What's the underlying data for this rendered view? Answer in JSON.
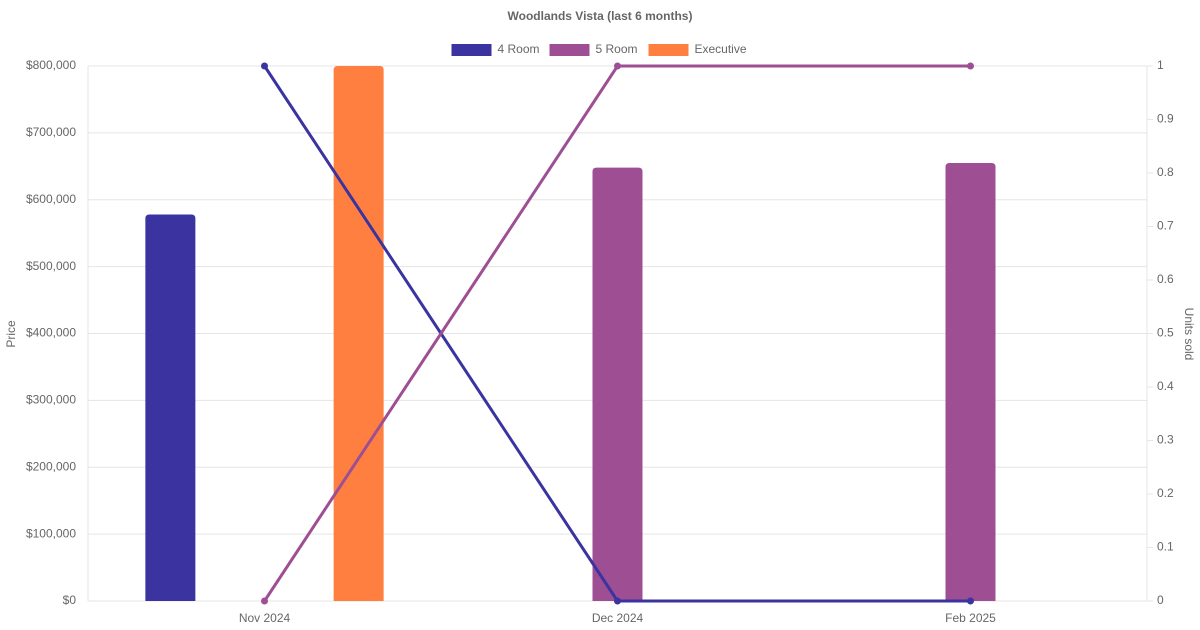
{
  "chart_data": {
    "type": "bar-line",
    "title": "Woodlands Vista (last 6 months)",
    "y_label": "Price",
    "y2_label": "Units sold",
    "categories": [
      "Nov 2024",
      "Dec 2024",
      "Feb 2025"
    ],
    "series": [
      {
        "name": "4 Room",
        "color": "#3a33a0",
        "values": [
          578000,
          null,
          null
        ],
        "units_sold": [
          1,
          0,
          0
        ]
      },
      {
        "name": "5 Room",
        "color": "#9e4f93",
        "values": [
          null,
          648000,
          655000
        ],
        "units_sold": [
          0,
          1,
          1
        ]
      },
      {
        "name": "Executive",
        "color": "#ff7f40",
        "values": [
          800000,
          null,
          null
        ]
      }
    ],
    "ylim": [
      0,
      800000
    ],
    "yticks": [
      {
        "value": 0,
        "label": "$0"
      },
      {
        "value": 100000,
        "label": "$100,000"
      },
      {
        "value": 200000,
        "label": "$200,000"
      },
      {
        "value": 300000,
        "label": "$300,000"
      },
      {
        "value": 400000,
        "label": "$400,000"
      },
      {
        "value": 500000,
        "label": "$500,000"
      },
      {
        "value": 600000,
        "label": "$600,000"
      },
      {
        "value": 700000,
        "label": "$700,000"
      },
      {
        "value": 800000,
        "label": "$800,000"
      }
    ],
    "y2lim": [
      0,
      1
    ],
    "y2ticks": [
      0,
      0.1,
      0.2,
      0.3,
      0.4,
      0.5,
      0.6,
      0.7,
      0.8,
      0.9,
      1
    ],
    "grid": true,
    "legend": "top"
  }
}
